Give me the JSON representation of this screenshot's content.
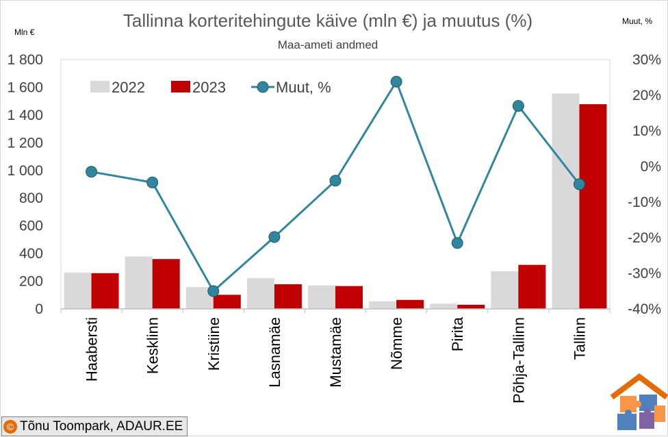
{
  "chart_data": {
    "type": "bar",
    "title": "Tallinna korteritehingute käive (mln €) ja muutus (%)",
    "subtitle": "Maa-ameti andmed",
    "ylabel_left": "Mln €",
    "ylabel_right": "Muut, %",
    "categories": [
      "Haabersti",
      "Kesklinn",
      "Kristiine",
      "Lasnamäe",
      "Mustamäe",
      "Nõmme",
      "Pirita",
      "Põhja-Tallinn",
      "Tallinn"
    ],
    "series": [
      {
        "name": "2022",
        "type": "bar",
        "axis": "left",
        "color": "#d9d9d9",
        "values": [
          262,
          378,
          158,
          222,
          170,
          55,
          38,
          272,
          1555
        ]
      },
      {
        "name": "2023",
        "type": "bar",
        "axis": "left",
        "color": "#c00000",
        "values": [
          258,
          360,
          102,
          178,
          165,
          65,
          30,
          318,
          1478
        ]
      },
      {
        "name": "Muut, %",
        "type": "line",
        "axis": "right",
        "color": "#31859c",
        "values": [
          -1.5,
          -4.5,
          -35.0,
          -19.8,
          -4.0,
          23.8,
          -21.5,
          17.0,
          -5.0
        ]
      }
    ],
    "ylim_left": [
      0,
      1800
    ],
    "ylim_right": [
      -40,
      30
    ],
    "yticks_left": [
      {
        "v": 0,
        "label": "0"
      },
      {
        "v": 200,
        "label": "200"
      },
      {
        "v": 400,
        "label": "400"
      },
      {
        "v": 600,
        "label": "600"
      },
      {
        "v": 800,
        "label": "800"
      },
      {
        "v": 1000,
        "label": "1 000"
      },
      {
        "v": 1200,
        "label": "1 200"
      },
      {
        "v": 1400,
        "label": "1 400"
      },
      {
        "v": 1600,
        "label": "1 600"
      },
      {
        "v": 1800,
        "label": "1 800"
      }
    ],
    "yticks_right": [
      {
        "v": 30,
        "label": "30%"
      },
      {
        "v": 20,
        "label": "20%"
      },
      {
        "v": 10,
        "label": "10%"
      },
      {
        "v": 0,
        "label": "0%"
      },
      {
        "v": -10,
        "label": "-10%"
      },
      {
        "v": -20,
        "label": "-20%"
      },
      {
        "v": -30,
        "label": "-30%"
      },
      {
        "v": -40,
        "label": "-40%"
      }
    ],
    "legend": {
      "position": "top-left",
      "items": [
        "2022",
        "2023",
        "Muut, %"
      ]
    },
    "grid": false
  },
  "copyright": {
    "symbol": "©",
    "text": "Tõnu Toompark, ADAUR.EE"
  },
  "logo": {
    "name": "house-puzzle-logo",
    "colors": {
      "roof": "#e36c0a",
      "orange": "#f79646",
      "blue": "#4f81bd",
      "purple": "#8064a2"
    }
  }
}
